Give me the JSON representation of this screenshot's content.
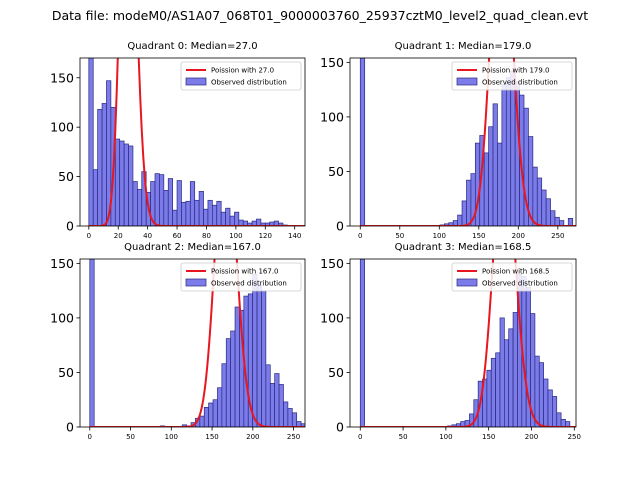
{
  "figure": {
    "suptitle": "Data file: modeM0/AS1A07_068T01_9000003760_25937cztM0_level2_quad_clean.evt"
  },
  "chart_data": [
    {
      "type": "bar",
      "title": "Quadrant 0: Median=27.0",
      "xlim": [
        -6,
        147
      ],
      "ylim": [
        0,
        170
      ],
      "xticks": [
        0,
        20,
        40,
        60,
        80,
        100,
        120,
        140
      ],
      "yticks": [
        0,
        50,
        100,
        150
      ],
      "bin_width": 3.0,
      "bins_start": 0,
      "hist_values": [
        170,
        57,
        118,
        124,
        147,
        120,
        88,
        86,
        83,
        81,
        45,
        37,
        55,
        34,
        45,
        53,
        52,
        36,
        48,
        16,
        46,
        24,
        25,
        45,
        26,
        35,
        17,
        26,
        21,
        25,
        14,
        18,
        10,
        14,
        6,
        5,
        3,
        5,
        7,
        3,
        3,
        4,
        5,
        3,
        1
      ],
      "mean": 27.0,
      "poisson_label": "Poission with 27.0",
      "hist_label": "Observed distribution"
    },
    {
      "type": "bar",
      "title": "Quadrant 1: Median=179.0",
      "xlim": [
        -13,
        273
      ],
      "ylim": [
        0,
        154
      ],
      "xticks": [
        0,
        50,
        100,
        150,
        200,
        250
      ],
      "yticks": [
        0,
        50,
        100,
        150
      ],
      "bin_width": 5.6,
      "bins_start": 0,
      "hist_values": [
        154,
        0,
        0,
        0,
        0,
        0,
        0,
        0,
        0,
        0,
        0,
        0,
        0,
        0,
        0,
        0,
        0,
        0,
        1,
        2,
        3,
        5,
        10,
        23,
        42,
        48,
        76,
        83,
        67,
        91,
        112,
        76,
        130,
        136,
        142,
        132,
        120,
        108,
        82,
        54,
        44,
        33,
        25,
        14,
        8,
        5,
        0,
        7
      ],
      "mean": 179.0,
      "poisson_label": "Poission with 179.0",
      "hist_label": "Observed distribution"
    },
    {
      "type": "bar",
      "title": "Quadrant 2: Median=167.0",
      "xlim": [
        -12,
        264
      ],
      "ylim": [
        0,
        154
      ],
      "xticks": [
        0,
        50,
        100,
        150,
        200,
        250
      ],
      "yticks": [
        0,
        50,
        100,
        150
      ],
      "bin_width": 5.4,
      "bins_start": 0,
      "hist_values": [
        154,
        0,
        0,
        0,
        0,
        0,
        0,
        0,
        0,
        0,
        0,
        0,
        0,
        0,
        0,
        0,
        1,
        0,
        0,
        0,
        0,
        2,
        1,
        4,
        8,
        10,
        18,
        22,
        25,
        36,
        58,
        81,
        88,
        110,
        107,
        120,
        122,
        140,
        130,
        125,
        57,
        40,
        49,
        39,
        23,
        17,
        13,
        5,
        3,
        2,
        0,
        1
      ],
      "mean": 167.0,
      "poisson_label": "Poission with 167.0",
      "hist_label": "Observed distribution"
    },
    {
      "type": "bar",
      "title": "Quadrant 3: Median=168.5",
      "xlim": [
        -12,
        252
      ],
      "ylim": [
        0,
        154
      ],
      "xticks": [
        0,
        50,
        100,
        150,
        200,
        250
      ],
      "yticks": [
        0,
        50,
        100,
        150
      ],
      "bin_width": 5.1,
      "bins_start": 0,
      "hist_values": [
        154,
        0,
        0,
        0,
        0,
        0,
        0,
        0,
        0,
        0,
        0,
        0,
        0,
        0,
        0,
        0,
        0,
        0,
        0,
        0,
        1,
        2,
        3,
        5,
        6,
        12,
        25,
        42,
        44,
        52,
        63,
        68,
        100,
        80,
        90,
        105,
        140,
        138,
        128,
        104,
        65,
        59,
        44,
        34,
        28,
        13,
        7,
        5
      ],
      "mean": 168.5,
      "poisson_label": "Poission with 168.5",
      "hist_label": "Observed distribution"
    }
  ],
  "colors": {
    "bar_fill": "#7b7bea",
    "bar_edge": "#2a2a80",
    "curve": "#e8171f"
  }
}
